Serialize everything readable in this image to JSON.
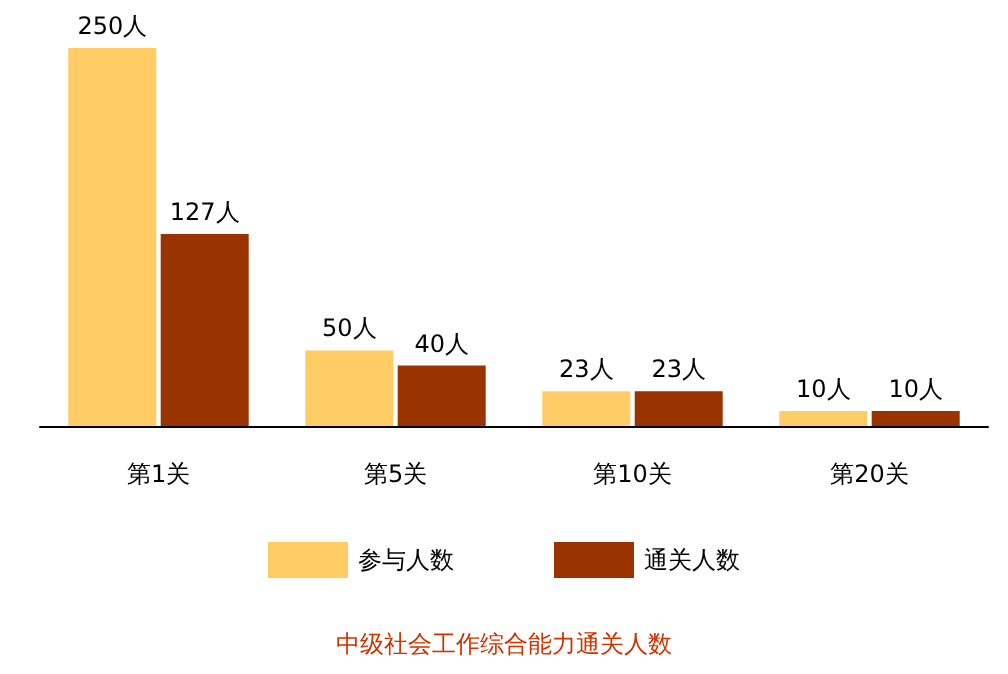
{
  "chart_data": {
    "type": "bar",
    "title": "中级社会工作综合能力通关人数",
    "categories": [
      "第1关",
      "第5关",
      "第10关",
      "第20关"
    ],
    "series": [
      {
        "name": "参与人数",
        "color": "#ffcc66",
        "values": [
          250,
          50,
          23,
          10
        ],
        "value_labels": [
          "250人",
          "50人",
          "23人",
          "10人"
        ]
      },
      {
        "name": "通关人数",
        "color": "#993300",
        "values": [
          127,
          40,
          23,
          10
        ],
        "value_labels": [
          "127人",
          "40人",
          "23人",
          "10人"
        ]
      }
    ],
    "legend": "bottom"
  }
}
